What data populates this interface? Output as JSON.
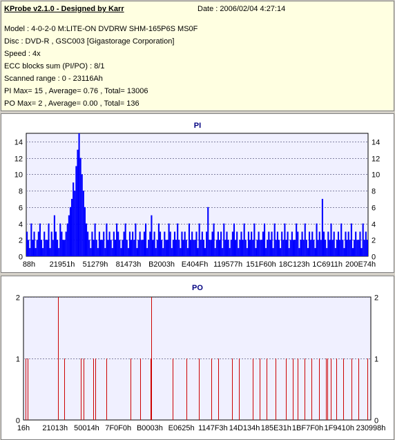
{
  "info": {
    "title": "KProbe v2.1.0 - Designed by Karr",
    "date": "Date : 2006/02/04 4:27:14",
    "lines": [
      "Model : 4-0-2-0 M:LITE-ON DVDRW SHM-165P6S MS0F",
      "Disc : DVD-R , GSC003 [Gigastorage Corporation]",
      "Speed : 4x",
      "ECC blocks sum (PI/PO) : 8/1",
      "Scanned range : 0 - 23116Ah",
      "PI Max= 15 , Average= 0.76 , Total= 13006",
      "PO Max= 2 , Average= 0.00 , Total= 136"
    ]
  },
  "colors": {
    "pi_series": "#0000ff",
    "po_series": "#cc0000",
    "plot_background": "#f0f0ff",
    "grid": "#8080a0",
    "title": "#000080"
  },
  "chart_data": [
    {
      "type": "bar",
      "title": "PI",
      "ylim": [
        0,
        15
      ],
      "yticks": [
        0,
        2,
        4,
        6,
        8,
        10,
        12,
        14
      ],
      "grid": true,
      "xlabels": [
        "88h",
        "21951h",
        "51279h",
        "81473h",
        "B2003h",
        "E404Fh",
        "119577h",
        "151F60h",
        "18C123h",
        "1C6911h",
        "200E74h"
      ],
      "x_range": "0 - 23116Ah",
      "peak_position": 0.16,
      "values": [
        3,
        2,
        1,
        4,
        2,
        3,
        1,
        2,
        3,
        4,
        2,
        1,
        3,
        2,
        2,
        4,
        1,
        3,
        2,
        5,
        3,
        2,
        1,
        4,
        3,
        2,
        2,
        3,
        4,
        5,
        6,
        7,
        9,
        8,
        11,
        13,
        15,
        12,
        10,
        8,
        6,
        4,
        3,
        2,
        1,
        3,
        2,
        4,
        2,
        1,
        3,
        2,
        2,
        3,
        1,
        4,
        2,
        3,
        2,
        1,
        3,
        2,
        4,
        3,
        2,
        1,
        2,
        3,
        4,
        2,
        1,
        3,
        2,
        3,
        2,
        4,
        1,
        2,
        3,
        2,
        2,
        3,
        4,
        1,
        2,
        3,
        5,
        2,
        3,
        1,
        2,
        4,
        3,
        2,
        1,
        3,
        2,
        2,
        4,
        3,
        1,
        2,
        3,
        2,
        4,
        2,
        1,
        3,
        2,
        3,
        2,
        1,
        4,
        2,
        3,
        2,
        2,
        3,
        1,
        4,
        2,
        3,
        2,
        1,
        3,
        6,
        2,
        2,
        3,
        4,
        1,
        2,
        3,
        2,
        3,
        1,
        4,
        2,
        3,
        2,
        1,
        2,
        3,
        4,
        2,
        3,
        1,
        2,
        3,
        2,
        4,
        2,
        1,
        3,
        2,
        3,
        2,
        4,
        1,
        2,
        3,
        2,
        2,
        3,
        4,
        1,
        2,
        3,
        2,
        3,
        1,
        4,
        2,
        3,
        2,
        1,
        3,
        2,
        4,
        2,
        3,
        1,
        2,
        3,
        2,
        2,
        4,
        3,
        1,
        2,
        3,
        2,
        4,
        2,
        1,
        3,
        2,
        3,
        2,
        1,
        4,
        2,
        3,
        2,
        7,
        3,
        2,
        1,
        3,
        2,
        4,
        2,
        3,
        1,
        2,
        3,
        2,
        4,
        2,
        1,
        3,
        2,
        3,
        2,
        4,
        1,
        2,
        3,
        2,
        2,
        3,
        1,
        4,
        2,
        3,
        2
      ]
    },
    {
      "type": "bar",
      "title": "PO",
      "ylim": [
        0,
        2
      ],
      "yticks": [
        0,
        1,
        2
      ],
      "grid": true,
      "xlabels": [
        "16h",
        "21013h",
        "50014h",
        "7F0F0h",
        "B0003h",
        "E0625h",
        "1147F3h",
        "14D134h",
        "185E31h",
        "1BF7F0h",
        "1F9410h",
        "230998h"
      ],
      "events": [
        {
          "x": 0.005,
          "v": 1
        },
        {
          "x": 0.012,
          "v": 1
        },
        {
          "x": 0.1,
          "v": 2
        },
        {
          "x": 0.117,
          "v": 1
        },
        {
          "x": 0.165,
          "v": 1
        },
        {
          "x": 0.173,
          "v": 1
        },
        {
          "x": 0.2,
          "v": 1
        },
        {
          "x": 0.206,
          "v": 1
        },
        {
          "x": 0.238,
          "v": 1
        },
        {
          "x": 0.308,
          "v": 1
        },
        {
          "x": 0.335,
          "v": 1
        },
        {
          "x": 0.365,
          "v": 1
        },
        {
          "x": 0.368,
          "v": 2
        },
        {
          "x": 0.43,
          "v": 1
        },
        {
          "x": 0.47,
          "v": 1
        },
        {
          "x": 0.505,
          "v": 1
        },
        {
          "x": 0.54,
          "v": 1
        },
        {
          "x": 0.56,
          "v": 1
        },
        {
          "x": 0.6,
          "v": 1
        },
        {
          "x": 0.62,
          "v": 1
        },
        {
          "x": 0.66,
          "v": 1
        },
        {
          "x": 0.68,
          "v": 1
        },
        {
          "x": 0.7,
          "v": 1
        },
        {
          "x": 0.725,
          "v": 1
        },
        {
          "x": 0.755,
          "v": 1
        },
        {
          "x": 0.775,
          "v": 1
        },
        {
          "x": 0.79,
          "v": 1
        },
        {
          "x": 0.81,
          "v": 1
        },
        {
          "x": 0.83,
          "v": 1
        },
        {
          "x": 0.85,
          "v": 1
        },
        {
          "x": 0.87,
          "v": 1
        },
        {
          "x": 0.875,
          "v": 1
        },
        {
          "x": 0.885,
          "v": 1
        },
        {
          "x": 0.9,
          "v": 1
        },
        {
          "x": 0.92,
          "v": 1
        },
        {
          "x": 0.945,
          "v": 1
        },
        {
          "x": 0.965,
          "v": 1
        },
        {
          "x": 0.99,
          "v": 1
        }
      ]
    }
  ]
}
